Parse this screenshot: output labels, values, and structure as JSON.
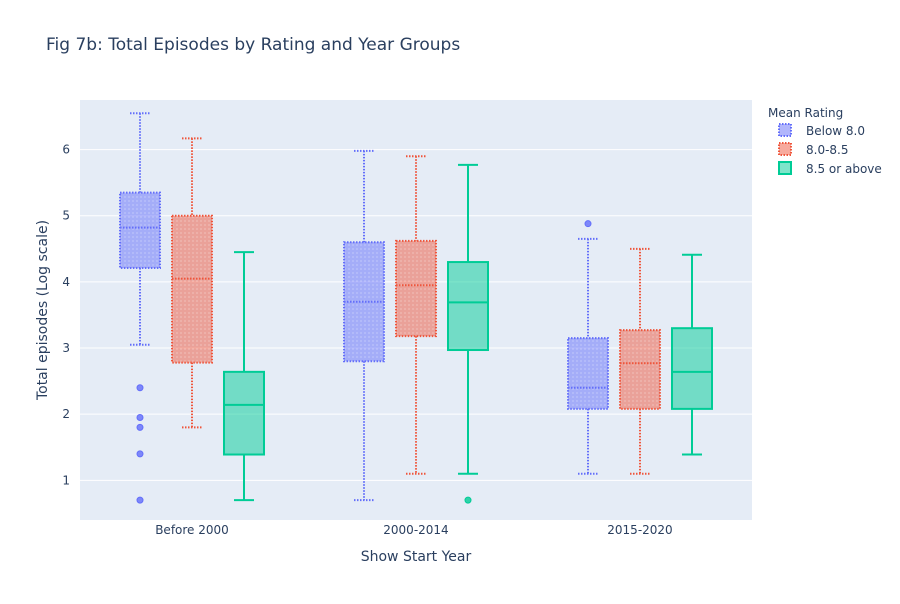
{
  "chart_data": {
    "type": "box",
    "title": "Fig 7b: Total Episodes by Rating and Year Groups",
    "xlabel": "Show Start Year",
    "ylabel": "Total episodes (Log scale)",
    "categories": [
      "Before 2000",
      "2000-2014",
      "2015-2020"
    ],
    "ylim": [
      0.4,
      6.75
    ],
    "yticks": [
      1,
      2,
      3,
      4,
      5,
      6
    ],
    "grid": true,
    "legend": {
      "title": "Mean Rating",
      "placement": "top-right"
    },
    "series": [
      {
        "name": "Below 8.0",
        "color": "#636efa",
        "boxes": [
          {
            "min": 3.05,
            "q1": 4.21,
            "median": 4.82,
            "q3": 5.35,
            "max": 6.55,
            "outliers": [
              2.4,
              1.95,
              1.8,
              1.4,
              0.7
            ]
          },
          {
            "min": 0.7,
            "q1": 2.8,
            "median": 3.7,
            "q3": 4.6,
            "max": 5.98,
            "outliers": []
          },
          {
            "min": 1.1,
            "q1": 2.08,
            "median": 2.4,
            "q3": 3.15,
            "max": 4.65,
            "outliers": [
              4.88
            ]
          }
        ]
      },
      {
        "name": "8.0-8.5",
        "color": "#ef553b",
        "boxes": [
          {
            "min": 1.8,
            "q1": 2.78,
            "median": 4.05,
            "q3": 5.0,
            "max": 6.17,
            "outliers": []
          },
          {
            "min": 1.1,
            "q1": 3.18,
            "median": 3.95,
            "q3": 4.62,
            "max": 5.9,
            "outliers": []
          },
          {
            "min": 1.1,
            "q1": 2.08,
            "median": 2.77,
            "q3": 3.27,
            "max": 4.5,
            "outliers": []
          }
        ]
      },
      {
        "name": "8.5 or above",
        "color": "#00cc96",
        "boxes": [
          {
            "min": 0.7,
            "q1": 1.39,
            "median": 2.14,
            "q3": 2.64,
            "max": 4.45,
            "outliers": []
          },
          {
            "min": 1.1,
            "q1": 2.97,
            "median": 3.69,
            "q3": 4.3,
            "max": 5.77,
            "outliers": [
              0.7
            ]
          },
          {
            "min": 1.39,
            "q1": 2.08,
            "median": 2.64,
            "q3": 3.3,
            "max": 4.41,
            "outliers": []
          }
        ]
      }
    ]
  }
}
